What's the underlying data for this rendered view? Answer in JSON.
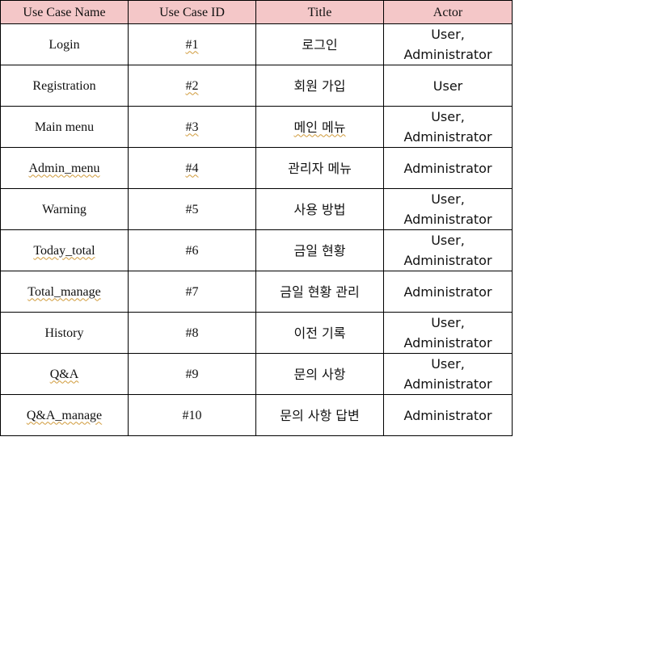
{
  "table": {
    "headers": [
      "Use Case Name",
      "Use Case ID",
      "Title",
      "Actor"
    ],
    "header_background": "#f4c7c8",
    "rows": [
      {
        "name": "Login",
        "id": "#1",
        "title": "로그인",
        "actor": [
          "User,",
          "Administrator"
        ]
      },
      {
        "name": "Registration",
        "id": "#2",
        "title": "회원 가입",
        "actor": [
          "User"
        ]
      },
      {
        "name": "Main menu",
        "id": "#3",
        "title": "메인 메뉴",
        "actor": [
          "User,",
          "Administrator"
        ]
      },
      {
        "name": "Admin_menu",
        "id": "#4",
        "title": "관리자 메뉴",
        "actor": [
          "Administrator"
        ]
      },
      {
        "name": "Warning",
        "id": "#5",
        "title": "사용 방법",
        "actor": [
          "User,",
          "Administrator"
        ]
      },
      {
        "name": "Today_total",
        "id": "#6",
        "title": "금일 현황",
        "actor": [
          "User,",
          "Administrator"
        ]
      },
      {
        "name": "Total_manage",
        "id": "#7",
        "title": "금일 현황 관리",
        "actor": [
          "Administrator"
        ]
      },
      {
        "name": "History",
        "id": "#8",
        "title": "이전 기록",
        "actor": [
          "User,",
          "Administrator"
        ]
      },
      {
        "name": "Q&A",
        "id": "#9",
        "title": "문의 사항",
        "actor": [
          "User,",
          "Administrator"
        ]
      },
      {
        "name": "Q&A_manage",
        "id": "#10",
        "title": "문의 사항 답변",
        "actor": [
          "Administrator"
        ]
      }
    ]
  }
}
